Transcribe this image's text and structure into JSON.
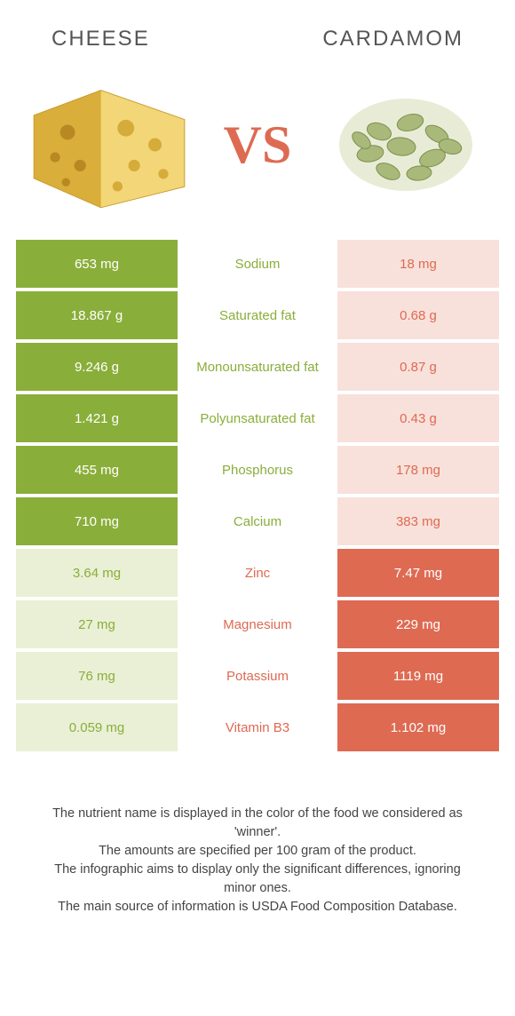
{
  "left_title": "Cheese",
  "right_title": "Cardamom",
  "vs_label": "VS",
  "colors": {
    "left": "#8aae3a",
    "right": "#de6a52",
    "left_text": "#8aae3a",
    "right_text": "#de6a52",
    "left_faded": "#eaf0d6",
    "right_faded": "#f8e1db"
  },
  "rows": [
    {
      "nutrient": "Sodium",
      "left": "653 mg",
      "right": "18 mg",
      "winner": "left"
    },
    {
      "nutrient": "Saturated fat",
      "left": "18.867 g",
      "right": "0.68 g",
      "winner": "left"
    },
    {
      "nutrient": "Monounsaturated fat",
      "left": "9.246 g",
      "right": "0.87 g",
      "winner": "left"
    },
    {
      "nutrient": "Polyunsaturated fat",
      "left": "1.421 g",
      "right": "0.43 g",
      "winner": "left"
    },
    {
      "nutrient": "Phosphorus",
      "left": "455 mg",
      "right": "178 mg",
      "winner": "left"
    },
    {
      "nutrient": "Calcium",
      "left": "710 mg",
      "right": "383 mg",
      "winner": "left"
    },
    {
      "nutrient": "Zinc",
      "left": "3.64 mg",
      "right": "7.47 mg",
      "winner": "right"
    },
    {
      "nutrient": "Magnesium",
      "left": "27 mg",
      "right": "229 mg",
      "winner": "right"
    },
    {
      "nutrient": "Potassium",
      "left": "76 mg",
      "right": "1119 mg",
      "winner": "right"
    },
    {
      "nutrient": "Vitamin B3",
      "left": "0.059 mg",
      "right": "1.102 mg",
      "winner": "right"
    }
  ],
  "footnotes": [
    "The nutrient name is displayed in the color of the food we considered as 'winner'.",
    "The amounts are specified per 100 gram of the product.",
    "The infographic aims to display only the significant differences, ignoring minor ones.",
    "The main source of information is USDA Food Composition Database."
  ]
}
